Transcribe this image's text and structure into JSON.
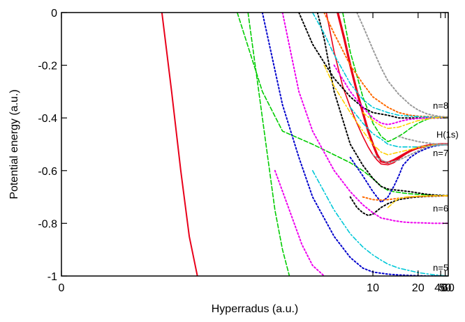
{
  "chart_data": {
    "type": "line",
    "xlabel": "Hyperradus (a.u.)",
    "ylabel": "Potential energy (a.u.)",
    "x_scale": "reciprocal",
    "xlim": [
      0,
      60
    ],
    "ylim": [
      -1,
      0
    ],
    "x_ticks": [
      {
        "value": 0,
        "label": "0"
      },
      {
        "value": 10,
        "label": "10"
      },
      {
        "value": 20,
        "label": "20"
      },
      {
        "value": 40,
        "label": "40"
      },
      {
        "value": 50,
        "label": "50"
      },
      {
        "value": 60,
        "label": "60"
      }
    ],
    "y_ticks": [
      {
        "value": 0,
        "label": "0"
      },
      {
        "value": -0.2,
        "label": "-0.2"
      },
      {
        "value": -0.4,
        "label": "-0.4"
      },
      {
        "value": -0.6,
        "label": "-0.6"
      },
      {
        "value": -0.8,
        "label": "-0.8"
      },
      {
        "value": -1,
        "label": "-1"
      }
    ],
    "annotations": [
      {
        "text": "n=8",
        "x": 40,
        "y": -0.365
      },
      {
        "text": "H(1s)",
        "x": 57,
        "y": -0.475
      },
      {
        "text": "n=7",
        "x": 40,
        "y": -0.545
      },
      {
        "text": "n=6",
        "x": 40,
        "y": -0.755
      },
      {
        "text": "n=5",
        "x": 40,
        "y": -0.98
      }
    ],
    "grid": false,
    "legend": "none",
    "series": [
      {
        "color": "#e8001a",
        "dash": "solid",
        "width": 3.2,
        "x": [
          7.2,
          7.6,
          8,
          8.5,
          9,
          9.5,
          10,
          10.5,
          11,
          12,
          13,
          15,
          17,
          20,
          25,
          30,
          40,
          60
        ],
        "y": [
          0,
          -0.1,
          -0.2,
          -0.3,
          -0.38,
          -0.45,
          -0.5,
          -0.54,
          -0.565,
          -0.57,
          -0.56,
          -0.54,
          -0.525,
          -0.513,
          -0.505,
          -0.502,
          -0.5,
          -0.5
        ]
      },
      {
        "color": "#e8001a",
        "dash": "solid",
        "width": 1.6,
        "x": [
          6.6,
          7,
          7.5,
          8,
          8.5,
          9,
          9.5,
          10,
          10.5,
          11,
          12,
          13,
          14,
          16,
          18,
          20,
          25,
          30,
          40,
          60
        ],
        "y": [
          0,
          -0.15,
          -0.28,
          -0.36,
          -0.42,
          -0.47,
          -0.51,
          -0.54,
          -0.56,
          -0.575,
          -0.578,
          -0.57,
          -0.555,
          -0.535,
          -0.522,
          -0.515,
          -0.507,
          -0.503,
          -0.501,
          -0.5
        ]
      },
      {
        "color": "#e8001a",
        "dash": "solid",
        "width": 2.0,
        "x": [
          3,
          3.1,
          3.2,
          3.3,
          3.4
        ],
        "y": [
          0,
          -0.3,
          -0.6,
          -0.85,
          -1
        ]
      },
      {
        "color": "#00cc00",
        "dash": "6,3",
        "width": 1.6,
        "x": [
          7.5,
          8,
          9,
          10,
          11,
          12,
          13,
          15,
          17,
          20,
          25,
          30,
          40,
          60
        ],
        "y": [
          0,
          -0.15,
          -0.32,
          -0.42,
          -0.47,
          -0.49,
          -0.48,
          -0.46,
          -0.44,
          -0.42,
          -0.405,
          -0.4,
          -0.398,
          -0.396
        ]
      },
      {
        "color": "#00cc00",
        "dash": "6,3",
        "width": 1.6,
        "x": [
          4,
          4.5,
          5,
          6,
          7,
          8,
          9,
          10,
          11,
          12,
          13,
          15,
          17,
          20,
          25,
          30,
          40,
          60
        ],
        "y": [
          0,
          -0.3,
          -0.45,
          -0.5,
          -0.54,
          -0.57,
          -0.6,
          -0.63,
          -0.66,
          -0.675,
          -0.68,
          -0.685,
          -0.688,
          -0.69,
          -0.692,
          -0.694,
          -0.695,
          -0.695
        ]
      },
      {
        "color": "#00cc00",
        "dash": "6,3",
        "width": 1.6,
        "x": [
          4.2,
          4.5,
          4.8,
          5,
          5.2
        ],
        "y": [
          0,
          -0.4,
          -0.75,
          -0.9,
          -1
        ]
      },
      {
        "color": "#000000",
        "dash": "2,3",
        "width": 2.0,
        "x": [
          5.5,
          6,
          7,
          8,
          9,
          10,
          12,
          14,
          17,
          20,
          25,
          30,
          40,
          60
        ],
        "y": [
          0,
          -0.12,
          -0.25,
          -0.32,
          -0.36,
          -0.38,
          -0.39,
          -0.4,
          -0.4,
          -0.4,
          -0.4,
          -0.4,
          -0.4,
          -0.398
        ]
      },
      {
        "color": "#000000",
        "dash": "2,3",
        "width": 2.0,
        "x": [
          6.2,
          6.5,
          7,
          8,
          9,
          10,
          11,
          12,
          14,
          17,
          20,
          25,
          30,
          40,
          60
        ],
        "y": [
          0,
          -0.1,
          -0.3,
          -0.5,
          -0.58,
          -0.63,
          -0.66,
          -0.67,
          -0.675,
          -0.68,
          -0.685,
          -0.69,
          -0.692,
          -0.694,
          -0.695
        ]
      },
      {
        "color": "#000000",
        "dash": "2,3",
        "width": 2.0,
        "x": [
          8,
          8.5,
          9,
          9.5,
          10,
          11,
          12,
          14,
          17,
          20,
          25,
          30,
          40,
          60
        ],
        "y": [
          -0.7,
          -0.74,
          -0.76,
          -0.77,
          -0.765,
          -0.74,
          -0.725,
          -0.71,
          -0.703,
          -0.7,
          -0.698,
          -0.697,
          -0.696,
          -0.695
        ]
      },
      {
        "color": "#0000cc",
        "dash": "2,3",
        "width": 2.0,
        "x": [
          4.5,
          5,
          5.5,
          6,
          7,
          8,
          9,
          10,
          12,
          14,
          17,
          20,
          25,
          30,
          40,
          60
        ],
        "y": [
          0,
          -0.35,
          -0.55,
          -0.7,
          -0.85,
          -0.93,
          -0.97,
          -0.985,
          -0.993,
          -0.996,
          -0.998,
          -0.999,
          -1,
          -1,
          -1,
          -1
        ]
      },
      {
        "color": "#0000cc",
        "dash": "2,3",
        "width": 2.0,
        "x": [
          8,
          9,
          10,
          11,
          12,
          13,
          14,
          15,
          17,
          20,
          25,
          30,
          40,
          60
        ],
        "y": [
          -0.55,
          -0.62,
          -0.68,
          -0.72,
          -0.7,
          -0.66,
          -0.62,
          -0.58,
          -0.55,
          -0.53,
          -0.515,
          -0.508,
          -0.503,
          -0.5
        ]
      },
      {
        "color": "#ff6a00",
        "dash": "2,3",
        "width": 2.0,
        "x": [
          6.5,
          7,
          8,
          9,
          10,
          12,
          14,
          17,
          20,
          25,
          30,
          40,
          60
        ],
        "y": [
          0,
          -0.08,
          -0.2,
          -0.27,
          -0.32,
          -0.36,
          -0.38,
          -0.39,
          -0.393,
          -0.395,
          -0.396,
          -0.397,
          -0.397
        ]
      },
      {
        "color": "#ff6a00",
        "dash": "2,3",
        "width": 2.0,
        "x": [
          9,
          10,
          11,
          12,
          14,
          17,
          20,
          25,
          30,
          40,
          60
        ],
        "y": [
          -0.7,
          -0.71,
          -0.712,
          -0.71,
          -0.705,
          -0.7,
          -0.698,
          -0.697,
          -0.696,
          -0.696,
          -0.696
        ]
      },
      {
        "color": "#ee00ee",
        "dash": "2,3",
        "width": 2.0,
        "x": [
          5,
          5.5,
          6,
          7,
          8,
          9,
          10,
          11,
          12,
          13,
          15,
          17,
          20,
          25,
          30,
          40,
          60
        ],
        "y": [
          0,
          -0.3,
          -0.45,
          -0.6,
          -0.68,
          -0.73,
          -0.76,
          -0.78,
          -0.785,
          -0.79,
          -0.795,
          -0.797,
          -0.798,
          -0.799,
          -0.8,
          -0.8,
          -0.8
        ]
      },
      {
        "color": "#ee00ee",
        "dash": "2,3",
        "width": 2.0,
        "x": [
          7,
          8,
          9,
          10,
          11,
          12,
          13,
          15,
          17,
          20,
          25,
          30,
          40,
          60
        ],
        "y": [
          -0.2,
          -0.3,
          -0.36,
          -0.4,
          -0.42,
          -0.425,
          -0.42,
          -0.41,
          -0.405,
          -0.402,
          -0.4,
          -0.4,
          -0.399,
          -0.398
        ]
      },
      {
        "color": "#ee00ee",
        "dash": "2,3",
        "width": 2.0,
        "x": [
          4.8,
          5.2,
          5.6,
          6,
          6.5
        ],
        "y": [
          -0.6,
          -0.75,
          -0.88,
          -0.96,
          -1
        ]
      },
      {
        "color": "#00c8d8",
        "dash": "6,3,2,3",
        "width": 1.6,
        "x": [
          6,
          6.5,
          7,
          8,
          9,
          10,
          12,
          14,
          17,
          20,
          25,
          30,
          40,
          60
        ],
        "y": [
          0,
          -0.08,
          -0.16,
          -0.27,
          -0.33,
          -0.36,
          -0.38,
          -0.39,
          -0.393,
          -0.395,
          -0.396,
          -0.397,
          -0.398,
          -0.398
        ]
      },
      {
        "color": "#00c8d8",
        "dash": "6,3,2,3",
        "width": 1.6,
        "x": [
          6,
          7,
          8,
          9,
          10,
          11,
          12,
          14,
          17,
          20,
          25,
          30,
          40,
          60
        ],
        "y": [
          -0.6,
          -0.75,
          -0.84,
          -0.89,
          -0.92,
          -0.94,
          -0.955,
          -0.97,
          -0.98,
          -0.987,
          -0.992,
          -0.995,
          -0.998,
          -1
        ]
      },
      {
        "color": "#00c8d8",
        "dash": "6,3,2,3",
        "width": 1.6,
        "x": [
          8,
          9,
          10,
          11,
          12,
          14,
          17,
          20,
          25,
          30,
          40,
          60
        ],
        "y": [
          -0.36,
          -0.42,
          -0.46,
          -0.48,
          -0.5,
          -0.51,
          -0.51,
          -0.51,
          -0.507,
          -0.505,
          -0.503,
          -0.502
        ]
      },
      {
        "color": "#ffd000",
        "dash": "6,3,2,3",
        "width": 1.6,
        "x": [
          6.5,
          7,
          8,
          9,
          10,
          11,
          12,
          14,
          17,
          20,
          25,
          30,
          40,
          60
        ],
        "y": [
          -0.2,
          -0.28,
          -0.38,
          -0.45,
          -0.5,
          -0.53,
          -0.54,
          -0.53,
          -0.52,
          -0.512,
          -0.506,
          -0.503,
          -0.501,
          -0.5
        ]
      },
      {
        "color": "#ffd000",
        "dash": "6,3,2,3",
        "width": 1.6,
        "x": [
          9,
          10,
          11,
          12,
          14,
          17,
          20,
          25,
          30,
          40,
          60
        ],
        "y": [
          -0.38,
          -0.41,
          -0.43,
          -0.44,
          -0.435,
          -0.42,
          -0.41,
          -0.404,
          -0.4,
          -0.398,
          -0.397
        ]
      },
      {
        "color": "#ffd000",
        "dash": "6,3,2,3",
        "width": 1.6,
        "x": [
          12,
          13,
          14,
          16,
          18,
          20,
          25,
          30,
          40,
          60
        ],
        "y": [
          -0.74,
          -0.72,
          -0.705,
          -0.7,
          -0.698,
          -0.697,
          -0.696,
          -0.695,
          -0.695,
          -0.695
        ]
      },
      {
        "color": "#999999",
        "dash": "2,3",
        "width": 2.0,
        "x": [
          8.5,
          9,
          10,
          11,
          12,
          14,
          17,
          20,
          25,
          30,
          40,
          60
        ],
        "y": [
          0,
          -0.05,
          -0.14,
          -0.21,
          -0.26,
          -0.31,
          -0.35,
          -0.37,
          -0.385,
          -0.39,
          -0.395,
          -0.396
        ]
      },
      {
        "color": "#999999",
        "dash": "2,3",
        "width": 2.0,
        "x": [
          10,
          11,
          12,
          14,
          17,
          20,
          25,
          30,
          40,
          60
        ],
        "y": [
          -0.54,
          -0.56,
          -0.57,
          -0.56,
          -0.54,
          -0.525,
          -0.51,
          -0.505,
          -0.502,
          -0.5
        ]
      },
      {
        "color": "#999999",
        "dash": "2,3",
        "width": 2.0,
        "x": [
          14,
          16,
          18,
          20,
          25,
          30,
          40,
          60
        ],
        "y": [
          -0.47,
          -0.48,
          -0.485,
          -0.49,
          -0.495,
          -0.498,
          -0.5,
          -0.5
        ]
      }
    ]
  }
}
